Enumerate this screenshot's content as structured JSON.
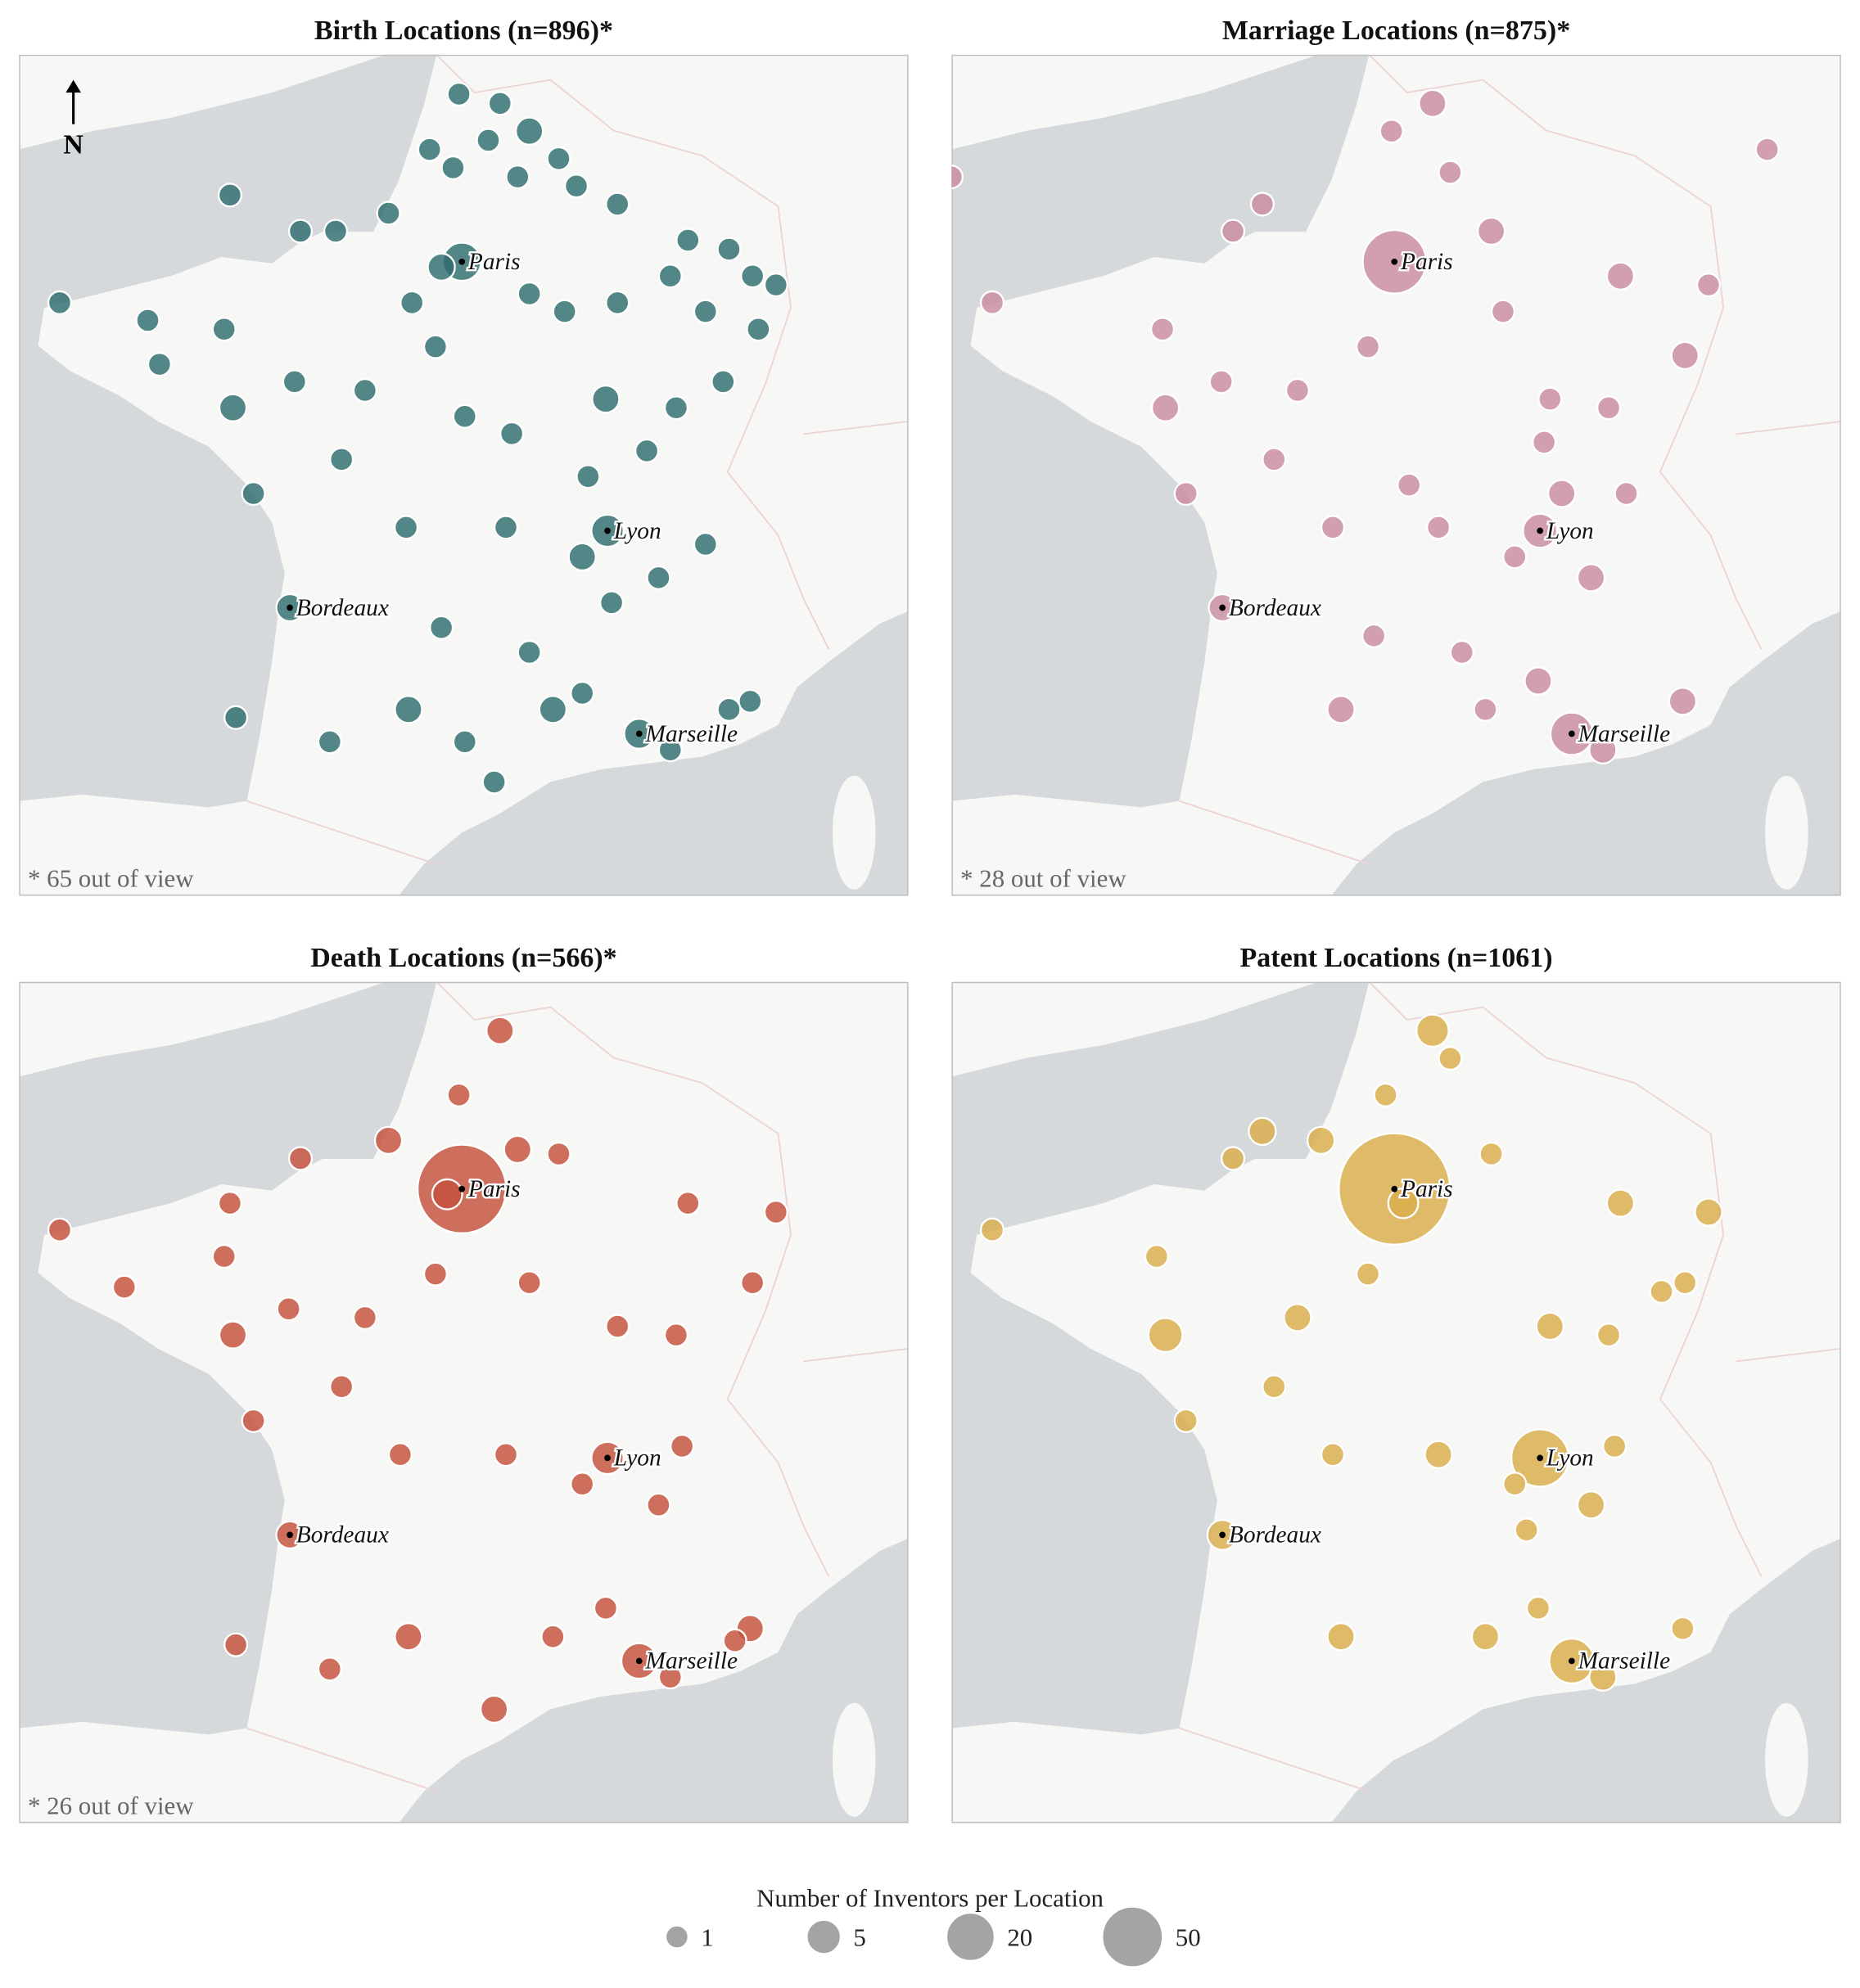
{
  "panels": [
    {
      "title": "Birth Locations (n=896)*",
      "footnote": "* 65 out of view",
      "color": "#2e6d6f",
      "points": [
        [
          2.3,
          50.7,
          1
        ],
        [
          3.0,
          50.6,
          1
        ],
        [
          3.5,
          50.3,
          2
        ],
        [
          2.8,
          50.2,
          1
        ],
        [
          4.0,
          50.0,
          1
        ],
        [
          1.8,
          50.1,
          1
        ],
        [
          2.2,
          49.9,
          1
        ],
        [
          3.3,
          49.8,
          1
        ],
        [
          4.3,
          49.7,
          1
        ],
        [
          5.0,
          49.5,
          1
        ],
        [
          6.2,
          49.1,
          1
        ],
        [
          6.9,
          49.0,
          1
        ],
        [
          7.3,
          48.7,
          1
        ],
        [
          7.7,
          48.6,
          1
        ],
        [
          7.4,
          48.1,
          1
        ],
        [
          6.5,
          48.3,
          1
        ],
        [
          5.9,
          48.7,
          1
        ],
        [
          5.0,
          48.4,
          1
        ],
        [
          4.1,
          48.3,
          1
        ],
        [
          3.5,
          48.5,
          1
        ],
        [
          2.35,
          48.86,
          8
        ],
        [
          2.0,
          48.8,
          2
        ],
        [
          1.5,
          48.4,
          1
        ],
        [
          0.2,
          49.2,
          1
        ],
        [
          -0.4,
          49.2,
          1
        ],
        [
          1.1,
          49.4,
          1
        ],
        [
          -1.6,
          49.6,
          1
        ],
        [
          -1.7,
          48.1,
          1
        ],
        [
          -3.0,
          48.2,
          1
        ],
        [
          -4.5,
          48.4,
          1
        ],
        [
          -2.8,
          47.7,
          1
        ],
        [
          -1.55,
          47.2,
          2
        ],
        [
          -0.5,
          47.5,
          1
        ],
        [
          0.7,
          47.4,
          1
        ],
        [
          1.9,
          47.9,
          1
        ],
        [
          2.4,
          47.1,
          1
        ],
        [
          3.2,
          46.9,
          1
        ],
        [
          4.8,
          47.3,
          2
        ],
        [
          6.0,
          47.2,
          1
        ],
        [
          6.8,
          47.5,
          1
        ],
        [
          5.5,
          46.7,
          1
        ],
        [
          4.5,
          46.4,
          1
        ],
        [
          3.1,
          45.8,
          1
        ],
        [
          4.83,
          45.76,
          4
        ],
        [
          4.4,
          45.45,
          2
        ],
        [
          5.7,
          45.2,
          1
        ],
        [
          6.5,
          45.6,
          1
        ],
        [
          4.9,
          44.9,
          1
        ],
        [
          -0.58,
          44.84,
          2
        ],
        [
          1.4,
          45.8,
          1
        ],
        [
          0.3,
          46.6,
          1
        ],
        [
          -1.2,
          46.2,
          1
        ],
        [
          1.44,
          43.6,
          2
        ],
        [
          2.4,
          43.2,
          1
        ],
        [
          3.9,
          43.6,
          2
        ],
        [
          4.4,
          43.8,
          1
        ],
        [
          5.37,
          43.3,
          3
        ],
        [
          5.9,
          43.1,
          1
        ],
        [
          7.26,
          43.7,
          1
        ],
        [
          6.9,
          43.6,
          1
        ],
        [
          2.9,
          42.7,
          1
        ],
        [
          0.1,
          43.2,
          1
        ],
        [
          -1.5,
          43.5,
          1
        ],
        [
          2.0,
          44.6,
          1
        ],
        [
          3.5,
          44.3,
          1
        ]
      ]
    },
    {
      "title": "Marriage Locations (n=875)*",
      "footnote": "* 28 out of view",
      "color": "#c98ba0",
      "points": [
        [
          2.35,
          48.86,
          60
        ],
        [
          3.0,
          50.6,
          2
        ],
        [
          2.3,
          50.3,
          1
        ],
        [
          3.3,
          49.85,
          1
        ],
        [
          4.0,
          49.2,
          2
        ],
        [
          6.2,
          48.7,
          2
        ],
        [
          7.7,
          48.6,
          1
        ],
        [
          7.3,
          47.8,
          2
        ],
        [
          6.0,
          47.2,
          1
        ],
        [
          5.0,
          47.3,
          1
        ],
        [
          4.2,
          48.3,
          1
        ],
        [
          1.9,
          47.9,
          1
        ],
        [
          0.1,
          49.5,
          1
        ],
        [
          -0.4,
          49.2,
          1
        ],
        [
          -1.6,
          48.1,
          1
        ],
        [
          -4.5,
          48.4,
          1
        ],
        [
          -1.55,
          47.2,
          2
        ],
        [
          0.7,
          47.4,
          1
        ],
        [
          -0.6,
          47.5,
          1
        ],
        [
          4.83,
          45.76,
          5
        ],
        [
          5.7,
          45.2,
          2
        ],
        [
          4.4,
          45.45,
          1
        ],
        [
          3.1,
          45.8,
          1
        ],
        [
          1.3,
          45.8,
          1
        ],
        [
          -0.58,
          44.84,
          2
        ],
        [
          0.3,
          46.6,
          1
        ],
        [
          -1.2,
          46.2,
          1
        ],
        [
          1.44,
          43.6,
          2
        ],
        [
          3.9,
          43.6,
          1
        ],
        [
          4.8,
          43.95,
          2
        ],
        [
          5.37,
          43.3,
          12
        ],
        [
          5.9,
          43.1,
          2
        ],
        [
          7.26,
          43.7,
          2
        ],
        [
          2.0,
          44.5,
          1
        ],
        [
          3.5,
          44.3,
          1
        ],
        [
          6.3,
          46.2,
          1
        ],
        [
          5.2,
          46.2,
          2
        ],
        [
          4.9,
          46.8,
          1
        ],
        [
          2.6,
          46.3,
          1
        ],
        [
          8.7,
          50.1,
          1
        ],
        [
          -5.2,
          49.8,
          1
        ]
      ]
    },
    {
      "title": "Death Locations (n=566)*",
      "footnote": "* 26 out of view",
      "color": "#c4503d",
      "points": [
        [
          2.35,
          48.86,
          229
        ],
        [
          2.1,
          48.8,
          3
        ],
        [
          3.0,
          50.6,
          2
        ],
        [
          2.3,
          49.9,
          1
        ],
        [
          3.3,
          49.3,
          2
        ],
        [
          4.0,
          49.25,
          1
        ],
        [
          1.1,
          49.4,
          2
        ],
        [
          -0.4,
          49.2,
          1
        ],
        [
          -1.6,
          48.7,
          1
        ],
        [
          -1.7,
          48.1,
          1
        ],
        [
          -4.5,
          48.4,
          1
        ],
        [
          -3.4,
          47.75,
          1
        ],
        [
          -1.55,
          47.2,
          2
        ],
        [
          -1.2,
          46.2,
          1
        ],
        [
          -0.6,
          47.5,
          1
        ],
        [
          0.7,
          47.4,
          1
        ],
        [
          1.9,
          47.9,
          1
        ],
        [
          3.5,
          47.8,
          1
        ],
        [
          6.2,
          48.7,
          1
        ],
        [
          7.7,
          48.6,
          1
        ],
        [
          7.3,
          47.8,
          1
        ],
        [
          6.0,
          47.2,
          1
        ],
        [
          5.0,
          47.3,
          1
        ],
        [
          4.83,
          45.76,
          4
        ],
        [
          4.4,
          45.45,
          1
        ],
        [
          5.7,
          45.2,
          1
        ],
        [
          6.1,
          45.9,
          1
        ],
        [
          3.1,
          45.8,
          1
        ],
        [
          1.3,
          45.8,
          1
        ],
        [
          0.3,
          46.6,
          1
        ],
        [
          -0.58,
          44.84,
          2
        ],
        [
          1.44,
          43.6,
          2
        ],
        [
          3.9,
          43.6,
          1
        ],
        [
          4.8,
          43.95,
          1
        ],
        [
          5.37,
          43.3,
          6
        ],
        [
          5.9,
          43.1,
          1
        ],
        [
          7.26,
          43.7,
          2
        ],
        [
          7.0,
          43.55,
          1
        ],
        [
          -1.5,
          43.5,
          1
        ],
        [
          2.9,
          42.7,
          2
        ],
        [
          0.1,
          43.2,
          1
        ]
      ]
    },
    {
      "title": "Patent Locations (n=1061)",
      "color": "#d9ad4a",
      "points": [
        [
          2.35,
          48.86,
          571
        ],
        [
          2.5,
          48.7,
          3
        ],
        [
          3.0,
          50.6,
          4
        ],
        [
          3.3,
          50.3,
          1
        ],
        [
          2.2,
          49.9,
          1
        ],
        [
          4.0,
          49.25,
          1
        ],
        [
          1.1,
          49.4,
          2
        ],
        [
          0.1,
          49.5,
          2
        ],
        [
          -0.4,
          49.2,
          1
        ],
        [
          -1.7,
          48.1,
          1
        ],
        [
          -1.55,
          47.2,
          5
        ],
        [
          -4.5,
          48.4,
          1
        ],
        [
          0.7,
          47.4,
          2
        ],
        [
          1.9,
          47.9,
          1
        ],
        [
          6.2,
          48.7,
          2
        ],
        [
          7.7,
          48.6,
          2
        ],
        [
          7.3,
          47.8,
          1
        ],
        [
          6.0,
          47.2,
          1
        ],
        [
          5.0,
          47.3,
          2
        ],
        [
          4.83,
          45.76,
          40
        ],
        [
          4.4,
          45.45,
          1
        ],
        [
          5.7,
          45.2,
          2
        ],
        [
          6.1,
          45.9,
          1
        ],
        [
          3.1,
          45.8,
          2
        ],
        [
          1.3,
          45.8,
          1
        ],
        [
          0.3,
          46.6,
          1
        ],
        [
          -1.2,
          46.2,
          1
        ],
        [
          -0.58,
          44.84,
          3
        ],
        [
          1.44,
          43.6,
          2
        ],
        [
          3.9,
          43.6,
          2
        ],
        [
          4.8,
          43.95,
          1
        ],
        [
          5.37,
          43.3,
          15
        ],
        [
          5.9,
          43.1,
          2
        ],
        [
          7.26,
          43.7,
          1
        ],
        [
          6.9,
          47.7,
          1
        ],
        [
          4.6,
          44.9,
          1
        ]
      ]
    }
  ],
  "cities": [
    {
      "name": "Paris",
      "lon": 2.35,
      "lat": 48.86
    },
    {
      "name": "Lyon",
      "lon": 4.83,
      "lat": 45.76
    },
    {
      "name": "Bordeaux",
      "lon": -0.58,
      "lat": 44.84
    },
    {
      "name": "Marseille",
      "lon": 5.37,
      "lat": 43.3
    }
  ],
  "north": "N",
  "legend": {
    "title": "Number of Inventors per Location",
    "values": [
      1,
      5,
      20,
      50
    ]
  }
}
